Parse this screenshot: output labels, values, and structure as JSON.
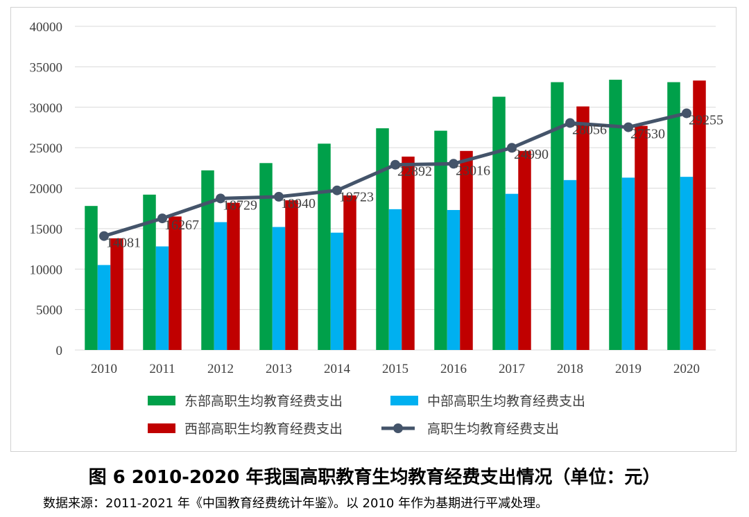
{
  "chart_data": {
    "type": "bar",
    "categories": [
      "2010",
      "2011",
      "2012",
      "2013",
      "2014",
      "2015",
      "2016",
      "2017",
      "2018",
      "2019",
      "2020"
    ],
    "ylim": [
      0,
      40000
    ],
    "yticks": [
      0,
      5000,
      10000,
      15000,
      20000,
      25000,
      30000,
      35000,
      40000
    ],
    "grid": true,
    "legend_position": "bottom",
    "series": [
      {
        "name": "东部高职生均教育经费支出",
        "type": "bar",
        "color": "#00a04a",
        "values": [
          17800,
          19200,
          22200,
          23100,
          25500,
          27400,
          27100,
          31300,
          33100,
          33400,
          33100
        ]
      },
      {
        "name": "中部高职生均教育经费支出",
        "type": "bar",
        "color": "#00b0f0",
        "values": [
          10500,
          12800,
          15800,
          15200,
          14500,
          17400,
          17300,
          19300,
          21000,
          21300,
          21400
        ]
      },
      {
        "name": "西部高职生均教育经费支出",
        "type": "bar",
        "color": "#c00000",
        "values": [
          13800,
          16500,
          18200,
          18500,
          19100,
          23900,
          24600,
          24600,
          30100,
          27700,
          33300
        ]
      },
      {
        "name": "高职生均教育经费支出",
        "type": "line",
        "color": "#44546a",
        "values": [
          14081,
          16267,
          18729,
          18940,
          19723,
          22892,
          23016,
          24990,
          28056,
          27530,
          29255
        ]
      }
    ]
  },
  "caption": "图 6 2010-2020 年我国高职教育生均教育经费支出情况（单位：元）",
  "source": "数据来源：2011-2021 年《中国教育经费统计年鉴》。以 2010 年作为基期进行平减处理。"
}
